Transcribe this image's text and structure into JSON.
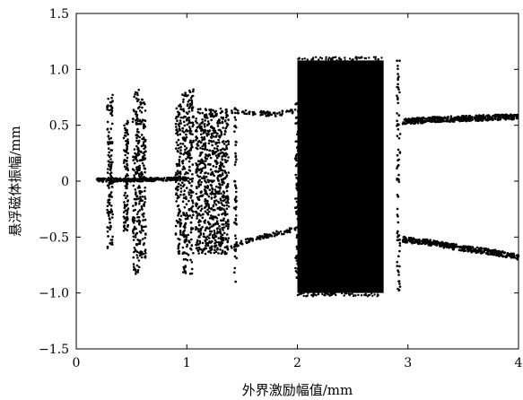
{
  "chart_data": {
    "type": "scatter",
    "title": "",
    "xlabel": "外界激励幅值/mm",
    "ylabel": "悬浮磁体振幅/mm",
    "xlim": [
      0,
      4
    ],
    "ylim": [
      -1.5,
      1.5
    ],
    "xticks": [
      0,
      1,
      2,
      3,
      4
    ],
    "xtick_labels": [
      "0",
      "1",
      "2",
      "3",
      "4"
    ],
    "yticks": [
      1.5,
      1.0,
      0.5,
      0,
      -0.5,
      -1.0,
      -1.5
    ],
    "ytick_labels": [
      "1.5",
      "1.0",
      "0.5",
      "0",
      "−0.5",
      "−1.0",
      "−1.5"
    ],
    "grid": false,
    "legend": "none",
    "marker_color": "#000000",
    "series": [
      {
        "points_desc": "bifurcation diagram of levitated magnet amplitude vs external excitation amplitude",
        "period1_branch": {
          "x": [
            0.18,
            0.5,
            0.9,
            1.0
          ],
          "y": [
            0.01,
            0.01,
            0.02,
            0.02
          ]
        },
        "upper_branch_mid": {
          "x": [
            1.4,
            1.6,
            1.8,
            1.98
          ],
          "y": [
            0.63,
            0.61,
            0.6,
            0.63
          ]
        },
        "lower_branch_mid": {
          "x": [
            1.4,
            1.6,
            1.8,
            1.98
          ],
          "y": [
            -0.58,
            -0.52,
            -0.47,
            -0.43
          ]
        },
        "upper_branch_right": {
          "x": [
            2.95,
            3.2,
            3.5,
            3.8,
            4.0
          ],
          "y": [
            0.53,
            0.55,
            0.56,
            0.57,
            0.58
          ]
        },
        "lower_branch_right": {
          "x": [
            2.95,
            3.2,
            3.5,
            3.8,
            4.0
          ],
          "y": [
            -0.52,
            -0.55,
            -0.6,
            -0.64,
            -0.68
          ]
        },
        "chaotic_bands": [
          {
            "x": [
              0.28,
              0.33
            ],
            "y": [
              -0.6,
              0.78
            ]
          },
          {
            "x": [
              0.43,
              0.47
            ],
            "y": [
              -0.45,
              0.55
            ]
          },
          {
            "x": [
              0.51,
              0.57
            ],
            "y": [
              -0.83,
              0.82
            ]
          },
          {
            "x": [
              0.57,
              0.63
            ],
            "y": [
              -0.7,
              0.75
            ]
          },
          {
            "x": [
              0.9,
              0.95
            ],
            "y": [
              -0.65,
              0.7
            ]
          },
          {
            "x": [
              0.96,
              1.06
            ],
            "y": [
              -0.83,
              0.83
            ]
          },
          {
            "x": [
              1.08,
              1.38
            ],
            "y": [
              -0.65,
              0.65
            ]
          },
          {
            "x": [
              1.43,
              1.45
            ],
            "y": [
              -0.9,
              0.68
            ]
          },
          {
            "x": [
              1.98,
              2.02
            ],
            "y": [
              -0.9,
              0.72
            ]
          },
          {
            "x": [
              2.0,
              2.78
            ],
            "y": [
              -1.0,
              1.08
            ]
          },
          {
            "x": [
              2.9,
              2.93
            ],
            "y": [
              -1.0,
              1.08
            ]
          }
        ]
      }
    ]
  }
}
